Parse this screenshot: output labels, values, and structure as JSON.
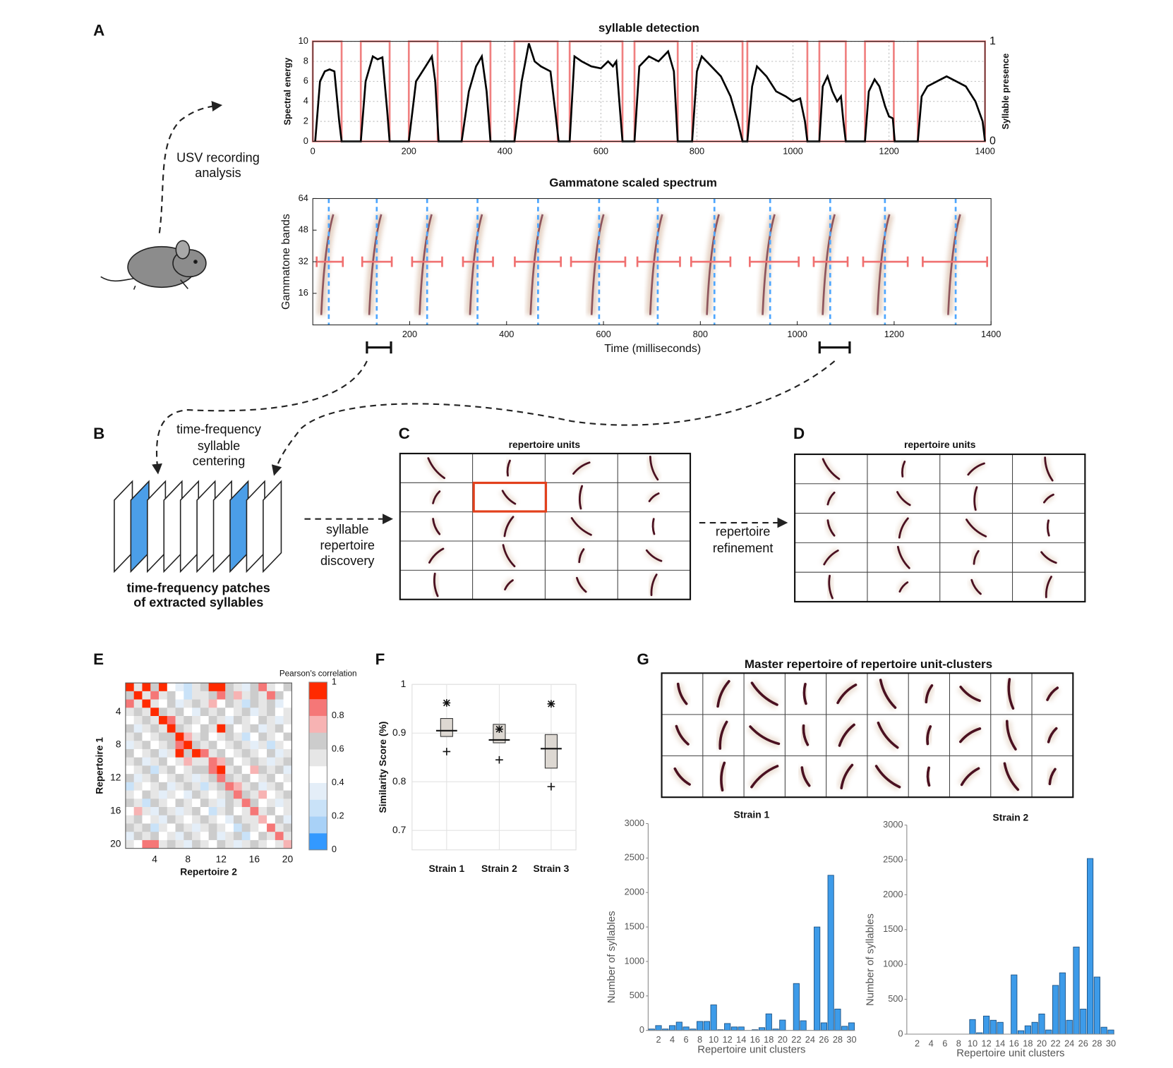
{
  "panel_labels": [
    "A",
    "B",
    "C",
    "D",
    "E",
    "F",
    "G"
  ],
  "texts": {
    "usv": [
      "USV recording",
      "analysis"
    ],
    "centering": [
      "time-frequency",
      "syllable",
      "centering"
    ],
    "patches": [
      "time-frequency patches",
      "of extracted syllables"
    ],
    "discovery": [
      "syllable",
      "repertoire",
      "discovery"
    ],
    "refinement": [
      "repertoire",
      "refinement"
    ],
    "repertoire_c": "repertoire units",
    "repertoire_d": "repertoire units",
    "master": "Master repertoire of repertoire unit-clusters"
  },
  "chart_data": [
    {
      "type": "line",
      "title": "syllable detection",
      "ylabel": "Spectral energy",
      "y2label": "Syllable presence",
      "xlim": [
        0,
        1400
      ],
      "xticks": [
        0,
        200,
        400,
        600,
        800,
        1000,
        1200,
        1400
      ],
      "ylim": [
        0,
        10
      ],
      "yticks": [
        0,
        2,
        4,
        6,
        8,
        10
      ],
      "y2lim": [
        0,
        1
      ],
      "y2ticks": [
        0,
        1
      ],
      "grid": true,
      "x": [
        5,
        15,
        25,
        35,
        45,
        55,
        60,
        100,
        110,
        125,
        135,
        145,
        155,
        160,
        200,
        215,
        235,
        248,
        255,
        262,
        310,
        325,
        340,
        352,
        362,
        370,
        420,
        435,
        450,
        462,
        475,
        495,
        505,
        512,
        535,
        545,
        560,
        580,
        600,
        615,
        625,
        632,
        640,
        645,
        670,
        680,
        700,
        720,
        740,
        752,
        760,
        790,
        800,
        810,
        830,
        850,
        870,
        885,
        895,
        905,
        915,
        925,
        945,
        965,
        985,
        1000,
        1015,
        1025,
        1030,
        1055,
        1062,
        1072,
        1082,
        1092,
        1100,
        1105,
        1110,
        1150,
        1158,
        1170,
        1180,
        1192,
        1200,
        1208,
        1212,
        1260,
        1268,
        1280,
        1300,
        1320,
        1340,
        1360,
        1380,
        1395,
        1400
      ],
      "series": [
        {
          "color": "#000000",
          "values": [
            0,
            6,
            7,
            7.2,
            7,
            2,
            0,
            0,
            6,
            8.5,
            8.2,
            8.4,
            3,
            0,
            0,
            6,
            7.5,
            8.5,
            6,
            0,
            0,
            5,
            7.5,
            8.5,
            5,
            0,
            0,
            6,
            9.8,
            8,
            7.5,
            7,
            3,
            0,
            0,
            8.5,
            8,
            7.5,
            7.3,
            8,
            7.5,
            8,
            3,
            0,
            0,
            7.5,
            8.5,
            8,
            9,
            7,
            0,
            0,
            7,
            8.5,
            7.5,
            6.5,
            4.5,
            2,
            0,
            0,
            5.5,
            7.5,
            6.5,
            5,
            4.5,
            4,
            4.3,
            2,
            0,
            0,
            5.5,
            6.5,
            5,
            4,
            4.5,
            2,
            0,
            0,
            5,
            6.2,
            5.5,
            3.5,
            2.5,
            2.3,
            0,
            0,
            4.5,
            5.5,
            6,
            6.5,
            6,
            5.5,
            4,
            2,
            0
          ]
        }
      ],
      "syllables": {
        "color": "#f08080",
        "start": [
          0,
          100,
          200,
          310,
          420,
          535,
          670,
          790,
          905,
          1055,
          1150,
          1260
        ],
        "end": [
          60,
          160,
          260,
          370,
          510,
          645,
          760,
          895,
          1030,
          1110,
          1210,
          1400
        ]
      }
    },
    {
      "type": "spectrum",
      "title": "Gammatone scaled spectrum",
      "xlabel": "Time (milliseconds)",
      "ylabel": "Gammatone bands",
      "xlim": [
        0,
        1400
      ],
      "xticks": [
        200,
        400,
        600,
        800,
        1000,
        1200,
        1400
      ],
      "ylim": [
        0,
        64
      ],
      "yticks": [
        16,
        32,
        48,
        64
      ],
      "centers": [
        33,
        132,
        236,
        340,
        465,
        591,
        712,
        829,
        944,
        1068,
        1181,
        1327
      ],
      "center_color": "#4da6ff",
      "span_level": 32,
      "span_color": "#f07070",
      "span_start": [
        8,
        102,
        205,
        310,
        417,
        533,
        670,
        781,
        902,
        1034,
        1136,
        1259
      ],
      "span_end": [
        62,
        163,
        267,
        372,
        512,
        645,
        758,
        862,
        1003,
        1104,
        1228,
        1392
      ]
    },
    {
      "type": "heatmap",
      "xlabel": "Repertoire 2",
      "ylabel": "Repertoire 1",
      "colorbar_title": "Pearson's correlation",
      "xlim": [
        0.5,
        20.5
      ],
      "ylim": [
        0.5,
        20.5
      ],
      "xticks": [
        4,
        8,
        12,
        16,
        20
      ],
      "yticks": [
        4,
        8,
        12,
        16,
        20
      ],
      "clim": [
        0,
        1
      ],
      "cticks": [
        0,
        0.2,
        0.4,
        0.6,
        0.8,
        1
      ],
      "colors": [
        "#3399ff",
        "#a8d1f7",
        "#c9e2f8",
        "#e4eef8",
        "#ffffff",
        "#e6e6e6",
        "#cccccc",
        "#f7b3b3",
        "#f57777",
        "#ff2a00"
      ],
      "values": [
        [
          1.0,
          0.5,
          0.9,
          0.6,
          1.0,
          0.4,
          0.3,
          0.2,
          0.5,
          0.6,
          0.9,
          0.9,
          0.6,
          0.5,
          0.3,
          0.6,
          0.8,
          0.5,
          0.4,
          0.6
        ],
        [
          0.6,
          1.0,
          0.5,
          0.8,
          0.5,
          0.6,
          0.4,
          0.2,
          0.5,
          0.5,
          0.6,
          0.8,
          0.6,
          0.7,
          0.5,
          0.6,
          0.5,
          0.8,
          0.6,
          0.4
        ],
        [
          0.8,
          0.5,
          0.9,
          0.5,
          0.4,
          0.6,
          0.3,
          0.5,
          0.6,
          0.5,
          0.7,
          0.4,
          0.6,
          0.5,
          0.2,
          0.6,
          0.5,
          0.6,
          0.3,
          0.4
        ],
        [
          0.5,
          0.6,
          0.5,
          1.0,
          0.6,
          0.5,
          0.6,
          0.4,
          0.3,
          0.6,
          0.5,
          0.6,
          0.4,
          0.5,
          0.6,
          0.3,
          0.5,
          0.6,
          0.4,
          0.5
        ],
        [
          0.4,
          0.5,
          0.6,
          0.5,
          1.0,
          0.8,
          0.5,
          0.6,
          0.5,
          0.4,
          0.6,
          0.5,
          0.3,
          0.6,
          0.5,
          0.4,
          0.6,
          0.5,
          0.3,
          0.5
        ],
        [
          0.6,
          0.3,
          0.5,
          0.6,
          0.5,
          1.0,
          0.6,
          0.5,
          0.4,
          0.6,
          0.5,
          0.9,
          0.6,
          0.4,
          0.5,
          0.6,
          0.3,
          0.5,
          0.6,
          0.4
        ],
        [
          0.5,
          0.6,
          0.4,
          0.5,
          0.6,
          0.6,
          1.0,
          0.7,
          0.5,
          0.6,
          0.4,
          0.5,
          0.6,
          0.5,
          0.2,
          0.4,
          0.6,
          0.5,
          0.4,
          0.6
        ],
        [
          0.3,
          0.5,
          0.6,
          0.4,
          0.5,
          0.6,
          0.8,
          1.0,
          0.6,
          0.5,
          0.6,
          0.4,
          0.5,
          0.6,
          0.5,
          0.3,
          0.5,
          0.2,
          0.5,
          0.4
        ],
        [
          0.6,
          0.4,
          0.5,
          0.6,
          0.3,
          0.5,
          0.9,
          0.6,
          0.9,
          0.8,
          0.5,
          0.6,
          0.4,
          0.5,
          0.6,
          0.5,
          0.4,
          0.6,
          0.3,
          0.5
        ],
        [
          0.5,
          0.6,
          0.3,
          0.5,
          0.6,
          0.4,
          0.5,
          0.7,
          0.5,
          0.5,
          0.8,
          0.7,
          0.6,
          0.4,
          0.5,
          0.6,
          0.5,
          0.3,
          0.5,
          0.6
        ],
        [
          0.4,
          0.5,
          0.6,
          0.2,
          0.5,
          0.6,
          0.4,
          0.5,
          0.6,
          0.6,
          0.8,
          0.9,
          0.5,
          0.6,
          0.4,
          0.7,
          0.6,
          0.5,
          0.6,
          0.3
        ],
        [
          0.6,
          0.3,
          0.5,
          0.6,
          0.4,
          0.5,
          0.6,
          0.5,
          0.3,
          0.5,
          0.6,
          0.8,
          0.6,
          0.5,
          0.6,
          0.4,
          0.5,
          0.6,
          0.4,
          0.5
        ],
        [
          0.2,
          0.5,
          0.4,
          0.5,
          0.6,
          0.3,
          0.5,
          0.6,
          0.5,
          0.2,
          0.5,
          0.6,
          0.8,
          0.7,
          0.5,
          0.6,
          0.3,
          0.5,
          0.6,
          0.4
        ],
        [
          0.5,
          0.4,
          0.6,
          0.5,
          0.3,
          0.5,
          0.4,
          0.3,
          0.6,
          0.5,
          0.4,
          0.5,
          0.6,
          0.8,
          0.6,
          0.5,
          0.7,
          0.4,
          0.5,
          0.6
        ],
        [
          0.6,
          0.5,
          0.2,
          0.6,
          0.5,
          0.4,
          0.6,
          0.5,
          0.4,
          0.6,
          0.5,
          0.3,
          0.6,
          0.5,
          0.8,
          0.6,
          0.4,
          0.5,
          0.3,
          0.5
        ],
        [
          0.4,
          0.7,
          0.5,
          0.3,
          0.6,
          0.5,
          0.3,
          0.5,
          0.6,
          0.4,
          0.2,
          0.5,
          0.6,
          0.4,
          0.5,
          0.8,
          0.5,
          0.6,
          0.4,
          0.5
        ],
        [
          0.5,
          0.6,
          0.4,
          0.5,
          0.3,
          0.6,
          0.5,
          0.4,
          0.5,
          0.6,
          0.5,
          0.4,
          0.3,
          0.6,
          0.5,
          0.5,
          0.7,
          0.4,
          0.6,
          0.3
        ],
        [
          0.6,
          0.5,
          0.6,
          0.2,
          0.5,
          0.4,
          0.6,
          0.5,
          0.3,
          0.5,
          0.6,
          0.5,
          0.4,
          0.2,
          0.6,
          0.5,
          0.4,
          0.8,
          0.5,
          0.6
        ],
        [
          0.3,
          0.6,
          0.5,
          0.6,
          0.4,
          0.5,
          0.3,
          0.6,
          0.5,
          0.4,
          0.6,
          0.3,
          0.5,
          0.6,
          0.2,
          0.4,
          0.6,
          0.5,
          0.8,
          0.5
        ],
        [
          0.5,
          0.4,
          0.8,
          0.8,
          0.5,
          0.6,
          0.5,
          0.3,
          0.6,
          0.5,
          0.4,
          0.6,
          0.5,
          0.3,
          0.5,
          0.6,
          0.5,
          0.4,
          0.5,
          0.7
        ]
      ]
    },
    {
      "type": "box",
      "ylabel": "Similarity Score (%)",
      "categories": [
        "Strain 1",
        "Strain 2",
        "Strain 3"
      ],
      "ylim": [
        0.66,
        1
      ],
      "yticks": [
        0.7,
        0.8,
        0.9,
        1
      ],
      "grid": true,
      "color": "#ddd8d2",
      "q1": [
        0.893,
        0.88,
        0.828
      ],
      "median": [
        0.905,
        0.886,
        0.868
      ],
      "q3": [
        0.93,
        0.918,
        0.897
      ],
      "upper": [
        0.962,
        0.908,
        0.96
      ],
      "lower": [
        0.862,
        0.845,
        0.79
      ]
    },
    {
      "type": "bar",
      "title": "Strain 1",
      "xlabel": "Repertoire unit clusters",
      "ylabel": "Number of syllables",
      "color": "#3d9be9",
      "xlim": [
        0.5,
        30.5
      ],
      "xticks": [
        2,
        4,
        6,
        8,
        10,
        12,
        14,
        16,
        18,
        20,
        22,
        24,
        26,
        28,
        30
      ],
      "ylim": [
        0,
        3000
      ],
      "yticks": [
        0,
        500,
        1000,
        1500,
        2000,
        2500,
        3000
      ],
      "x": [
        1,
        2,
        3,
        4,
        5,
        6,
        7,
        8,
        9,
        10,
        11,
        12,
        13,
        14,
        15,
        16,
        17,
        18,
        19,
        20,
        21,
        22,
        23,
        24,
        25,
        26,
        27,
        28,
        29,
        30
      ],
      "values": [
        20,
        70,
        20,
        70,
        120,
        50,
        20,
        130,
        130,
        370,
        10,
        100,
        50,
        50,
        0,
        10,
        40,
        240,
        20,
        150,
        0,
        680,
        140,
        0,
        1500,
        110,
        2250,
        310,
        60,
        110
      ]
    },
    {
      "type": "bar",
      "title": "Strain 2",
      "xlabel": "Repertoire unit clusters",
      "ylabel": "Number of syllables",
      "color": "#3d9be9",
      "xlim": [
        0.5,
        30.5
      ],
      "xticks": [
        2,
        4,
        6,
        8,
        10,
        12,
        14,
        16,
        18,
        20,
        22,
        24,
        26,
        28,
        30
      ],
      "ylim": [
        0,
        3000
      ],
      "yticks": [
        0,
        500,
        1000,
        1500,
        2000,
        2500,
        3000
      ],
      "x": [
        1,
        2,
        3,
        4,
        5,
        6,
        7,
        8,
        9,
        10,
        11,
        12,
        13,
        14,
        15,
        16,
        17,
        18,
        19,
        20,
        21,
        22,
        23,
        24,
        25,
        26,
        27,
        28,
        29,
        30
      ],
      "values": [
        0,
        0,
        0,
        0,
        0,
        0,
        0,
        0,
        0,
        210,
        20,
        260,
        200,
        170,
        0,
        850,
        50,
        120,
        170,
        290,
        60,
        700,
        880,
        200,
        1250,
        360,
        2520,
        820,
        100,
        60
      ]
    }
  ]
}
